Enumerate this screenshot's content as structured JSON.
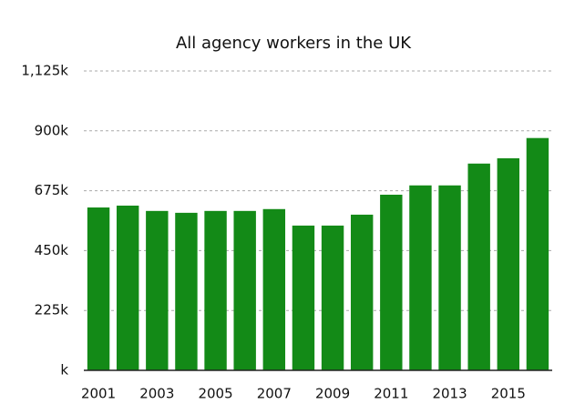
{
  "chart_data": {
    "type": "bar",
    "title": "All agency workers in the UK",
    "categories": [
      "2001",
      null,
      "2003",
      null,
      "2005",
      null,
      "2007",
      null,
      "2009",
      null,
      "2011",
      null,
      "2013",
      null,
      "2015",
      null
    ],
    "values": [
      612,
      619,
      599,
      592,
      599,
      599,
      606,
      544,
      544,
      585,
      660,
      695,
      695,
      777,
      797,
      873
    ],
    "color": "#138a17",
    "ylim": [
      0,
      1125
    ],
    "yticks": [
      {
        "value": 0,
        "label": "k"
      },
      {
        "value": 225,
        "label": "225k"
      },
      {
        "value": 450,
        "label": "450k"
      },
      {
        "value": 675,
        "label": "675k"
      },
      {
        "value": 900,
        "label": "900k"
      },
      {
        "value": 1125,
        "label": "1,125k"
      }
    ],
    "grid": true
  }
}
